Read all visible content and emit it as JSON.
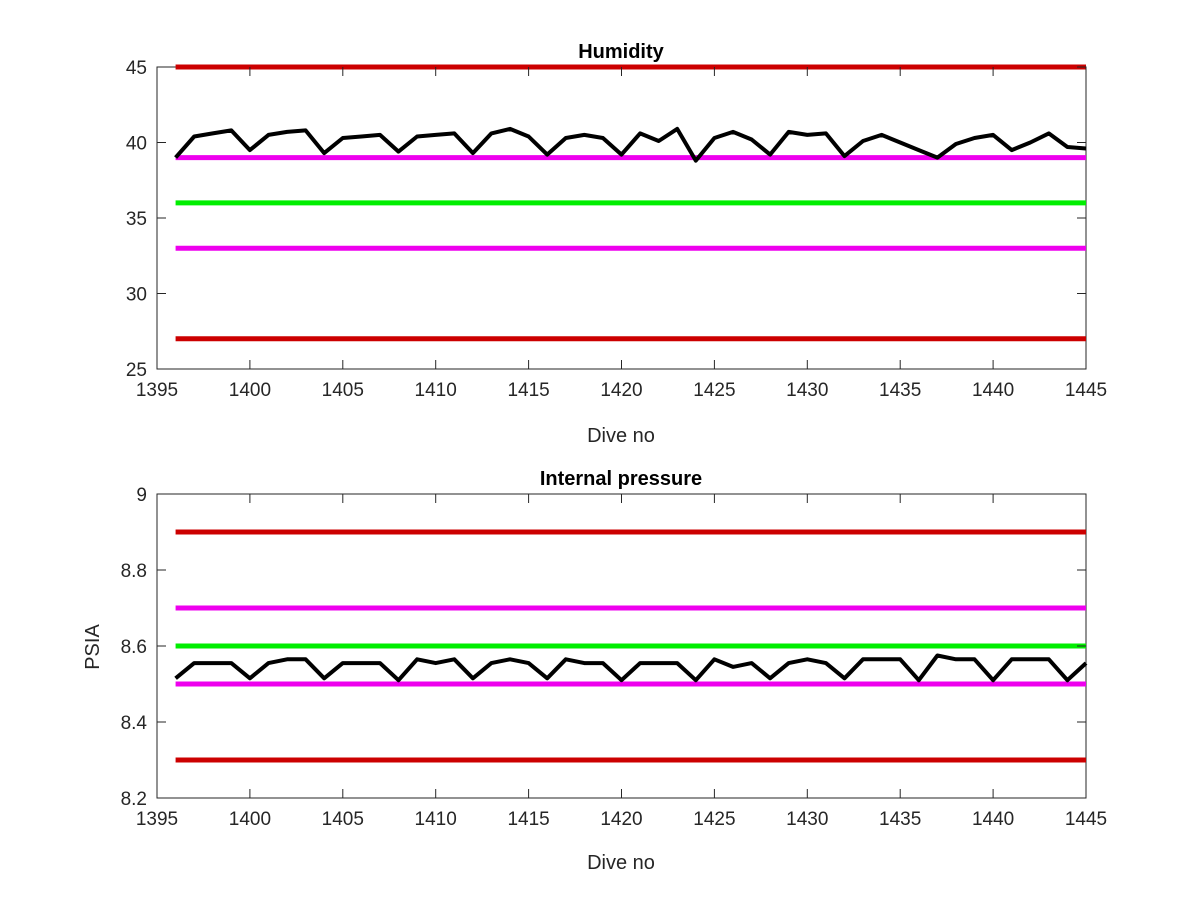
{
  "chart_data": [
    {
      "type": "line",
      "title": "Humidity",
      "xlabel": "Dive no",
      "ylabel": "",
      "xlim": [
        1395,
        1445
      ],
      "ylim": [
        25,
        45
      ],
      "xticks": [
        "1395",
        "1400",
        "1405",
        "1410",
        "1415",
        "1420",
        "1425",
        "1430",
        "1435",
        "1440",
        "1445"
      ],
      "yticks": [
        "25",
        "30",
        "35",
        "40",
        "45"
      ],
      "grid": false,
      "legend": "none",
      "series": [
        {
          "x": [
            1396,
            1397,
            1398,
            1399,
            1400,
            1401,
            1402,
            1403,
            1404,
            1405,
            1406,
            1407,
            1408,
            1409,
            1410,
            1411,
            1412,
            1413,
            1414,
            1415,
            1416,
            1417,
            1418,
            1419,
            1420,
            1421,
            1422,
            1423,
            1424,
            1425,
            1426,
            1427,
            1428,
            1429,
            1430,
            1431,
            1432,
            1433,
            1434,
            1435,
            1436,
            1437,
            1438,
            1439,
            1440,
            1441,
            1442,
            1443,
            1444,
            1445
          ],
          "values": [
            39.0,
            40.4,
            40.6,
            40.8,
            39.5,
            40.5,
            40.7,
            40.8,
            39.3,
            40.3,
            40.4,
            40.5,
            39.4,
            40.4,
            40.5,
            40.6,
            39.3,
            40.6,
            40.9,
            40.4,
            39.2,
            40.3,
            40.5,
            40.3,
            39.2,
            40.6,
            40.1,
            40.9,
            38.8,
            40.3,
            40.7,
            40.2,
            39.2,
            40.7,
            40.5,
            40.6,
            39.1,
            40.1,
            40.5,
            40.0,
            39.5,
            39.0,
            39.9,
            40.3,
            40.5,
            39.5,
            40.0,
            40.6,
            39.7,
            39.6
          ],
          "color": "#000000"
        }
      ],
      "reference_lines": [
        {
          "y": 45,
          "color": "#cc0000"
        },
        {
          "y": 39,
          "color": "#ee00ee"
        },
        {
          "y": 36,
          "color": "#00ee00"
        },
        {
          "y": 33,
          "color": "#ee00ee"
        },
        {
          "y": 27,
          "color": "#cc0000"
        }
      ]
    },
    {
      "type": "line",
      "title": "Internal pressure",
      "xlabel": "Dive no",
      "ylabel": "PSIA",
      "xlim": [
        1395,
        1445
      ],
      "ylim": [
        8.2,
        9.0
      ],
      "xticks": [
        "1395",
        "1400",
        "1405",
        "1410",
        "1415",
        "1420",
        "1425",
        "1430",
        "1435",
        "1440",
        "1445"
      ],
      "yticks": [
        "8.2",
        "8.4",
        "8.6",
        "8.8",
        "9"
      ],
      "grid": false,
      "legend": "none",
      "series": [
        {
          "x": [
            1396,
            1397,
            1398,
            1399,
            1400,
            1401,
            1402,
            1403,
            1404,
            1405,
            1406,
            1407,
            1408,
            1409,
            1410,
            1411,
            1412,
            1413,
            1414,
            1415,
            1416,
            1417,
            1418,
            1419,
            1420,
            1421,
            1422,
            1423,
            1424,
            1425,
            1426,
            1427,
            1428,
            1429,
            1430,
            1431,
            1432,
            1433,
            1434,
            1435,
            1436,
            1437,
            1438,
            1439,
            1440,
            1441,
            1442,
            1443,
            1444,
            1445
          ],
          "values": [
            8.515,
            8.555,
            8.555,
            8.555,
            8.515,
            8.555,
            8.565,
            8.565,
            8.515,
            8.555,
            8.555,
            8.555,
            8.51,
            8.565,
            8.555,
            8.565,
            8.515,
            8.555,
            8.565,
            8.555,
            8.515,
            8.565,
            8.555,
            8.555,
            8.51,
            8.555,
            8.555,
            8.555,
            8.51,
            8.565,
            8.545,
            8.555,
            8.515,
            8.555,
            8.565,
            8.555,
            8.515,
            8.565,
            8.565,
            8.565,
            8.51,
            8.575,
            8.565,
            8.565,
            8.51,
            8.565,
            8.565,
            8.565,
            8.51,
            8.555
          ],
          "color": "#000000"
        }
      ],
      "reference_lines": [
        {
          "y": 8.9,
          "color": "#cc0000"
        },
        {
          "y": 8.7,
          "color": "#ee00ee"
        },
        {
          "y": 8.6,
          "color": "#00ee00"
        },
        {
          "y": 8.5,
          "color": "#ee00ee"
        },
        {
          "y": 8.3,
          "color": "#cc0000"
        }
      ]
    }
  ]
}
